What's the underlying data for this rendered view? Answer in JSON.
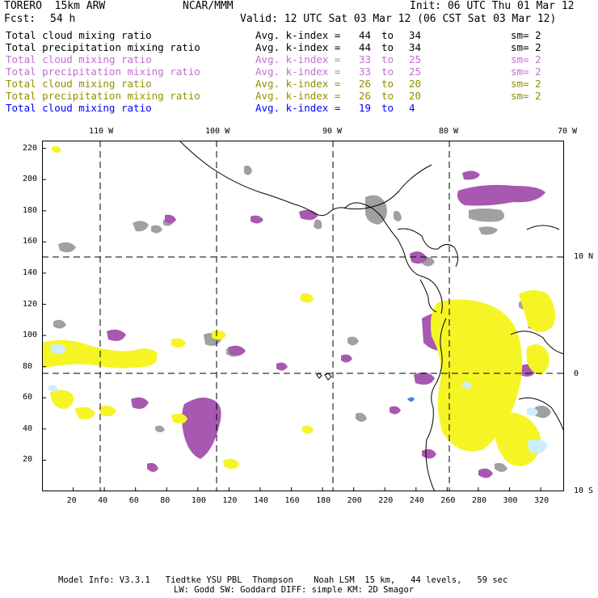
{
  "header": {
    "model": "TORERO  15km ARW",
    "org": "NCAR/MMM",
    "init": "Init: 06 UTC Thu 01 Mar 12",
    "fcst_label": "Fcst:",
    "fcst_value": "54 h",
    "valid": "Valid: 12 UTC Sat 03 Mar 12 (06 CST Sat 03 Mar 12)"
  },
  "legend": [
    {
      "field": "Total cloud mixing ratio",
      "kindex": "Avg. k-index =",
      "from": "44",
      "to_word": "to",
      "to": "34",
      "sm": "sm= 2",
      "color": "#000000"
    },
    {
      "field": "Total precipitation mixing ratio",
      "kindex": "Avg. k-index =",
      "from": "44",
      "to_word": "to",
      "to": "34",
      "sm": "sm= 2",
      "color": "#000000"
    },
    {
      "field": "Total cloud mixing ratio",
      "kindex": "Avg. k-index =",
      "from": "33",
      "to_word": "to",
      "to": "25",
      "sm": "sm= 2",
      "color": "#c070d0"
    },
    {
      "field": "Total precipitation mixing ratio",
      "kindex": "Avg. k-index =",
      "from": "33",
      "to_word": "to",
      "to": "25",
      "sm": "sm= 2",
      "color": "#c070d0"
    },
    {
      "field": "Total cloud mixing ratio",
      "kindex": "Avg. k-index =",
      "from": "26",
      "to_word": "to",
      "to": "20",
      "sm": "sm= 2",
      "color": "#909000"
    },
    {
      "field": "Total precipitation mixing ratio",
      "kindex": "Avg. k-index =",
      "from": "26",
      "to_word": "to",
      "to": "20",
      "sm": "sm= 2",
      "color": "#909000"
    },
    {
      "field": "Total cloud mixing ratio",
      "kindex": "Avg. k-index =",
      "from": "19",
      "to_word": "to",
      "to": "4",
      "sm": "",
      "color": "#0000ff"
    }
  ],
  "map": {
    "lon_labels": [
      "110 W",
      "100 W",
      "90 W",
      "80 W",
      "70 W"
    ],
    "lat_labels": [
      "10 N",
      "0",
      "10 S"
    ],
    "x_ticks": [
      "20",
      "40",
      "60",
      "80",
      "100",
      "120",
      "140",
      "160",
      "180",
      "200",
      "220",
      "240",
      "260",
      "280",
      "300",
      "320"
    ],
    "y_ticks": [
      "20",
      "40",
      "60",
      "80",
      "100",
      "120",
      "140",
      "160",
      "180",
      "200",
      "220"
    ],
    "colors": {
      "gray": "#a0a0a0",
      "purple": "#a858b0",
      "yellow": "#f5f526",
      "lightblue": "#cceeff",
      "blue": "#4a7cff"
    }
  },
  "footer": {
    "line1": "Model Info: V3.3.1   Tiedtke YSU PBL  Thompson    Noah LSM  15 km,   44 levels,   59 sec",
    "line2": "LW: Godd SW: Goddard DIFF: simple KM: 2D Smagor"
  }
}
